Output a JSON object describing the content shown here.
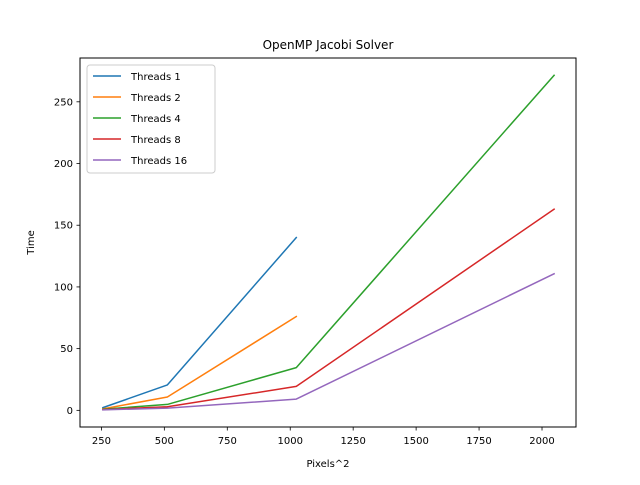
{
  "chart_data": {
    "type": "line",
    "title": "OpenMP Jacobi Solver",
    "xlabel": "Pixels^2",
    "ylabel": "Time",
    "xlim": [
      165,
      2135
    ],
    "ylim": [
      -13.5,
      285.5
    ],
    "xticks": [
      250,
      500,
      750,
      1000,
      1250,
      1500,
      1750,
      2000
    ],
    "yticks": [
      0,
      50,
      100,
      150,
      200,
      250
    ],
    "grid": false,
    "legend_position": "top-left",
    "series": [
      {
        "name": "Threads 1",
        "color": "#1f77b4",
        "x": [
          256,
          512,
          1024
        ],
        "y": [
          2.2,
          20.6,
          140.0
        ]
      },
      {
        "name": "Threads 2",
        "color": "#ff7f0e",
        "x": [
          256,
          512,
          1024
        ],
        "y": [
          1.2,
          10.8,
          76.0
        ]
      },
      {
        "name": "Threads 4",
        "color": "#2ca02c",
        "x": [
          256,
          512,
          1024,
          2048
        ],
        "y": [
          0.9,
          4.8,
          34.6,
          271.5
        ]
      },
      {
        "name": "Threads 8",
        "color": "#d62728",
        "x": [
          256,
          512,
          1024,
          2048
        ],
        "y": [
          0.6,
          2.9,
          19.4,
          163.0
        ]
      },
      {
        "name": "Threads 16",
        "color": "#9467bd",
        "x": [
          256,
          512,
          1024,
          2048
        ],
        "y": [
          0.4,
          1.8,
          9.1,
          110.7
        ]
      }
    ]
  }
}
